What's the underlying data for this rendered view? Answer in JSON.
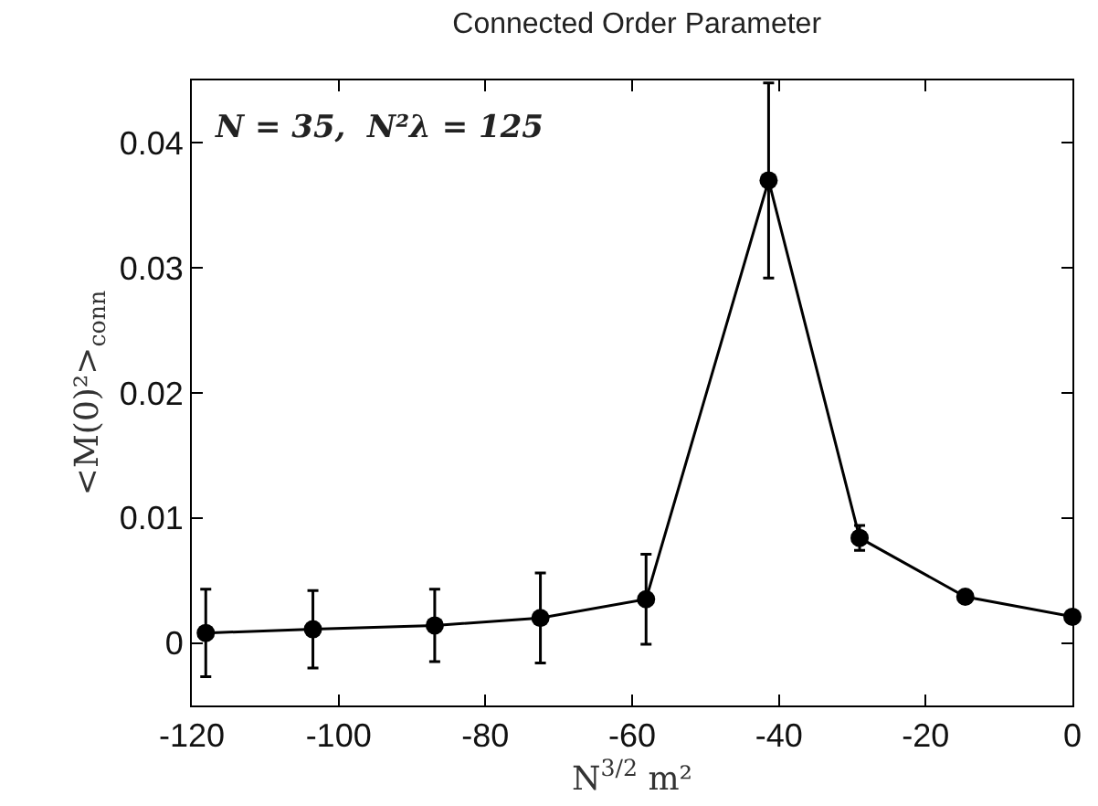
{
  "chart_data": {
    "type": "line",
    "title": "Connected Order Parameter",
    "xlabel": "N$^{3/2}$ m²",
    "ylabel": "<M(0)²>$_{conn}$",
    "annotations": [
      "N = 35,  N²λ = 125"
    ],
    "x": [
      -118.1,
      -103.5,
      -86.9,
      -72.5,
      -58.1,
      -41.4,
      -29.0,
      -14.6,
      0
    ],
    "series": [
      {
        "color": "#000000",
        "values": [
          0.0008,
          0.0011,
          0.0014,
          0.002,
          0.0035,
          0.037,
          0.0084,
          0.0037,
          0.0021
        ],
        "errors": [
          0.0035,
          0.0031,
          0.0029,
          0.0036,
          0.0036,
          0.0078,
          0.001,
          null,
          null
        ]
      }
    ],
    "xlim": [
      -120,
      0
    ],
    "xticks": [
      -120,
      -100,
      -80,
      -60,
      -40,
      -20,
      0
    ],
    "ylim": [
      -0.005,
      0.045
    ],
    "yticks": [
      0,
      0.01,
      0.02,
      0.03,
      0.04
    ],
    "marker": "circle",
    "line_style": "solid"
  }
}
